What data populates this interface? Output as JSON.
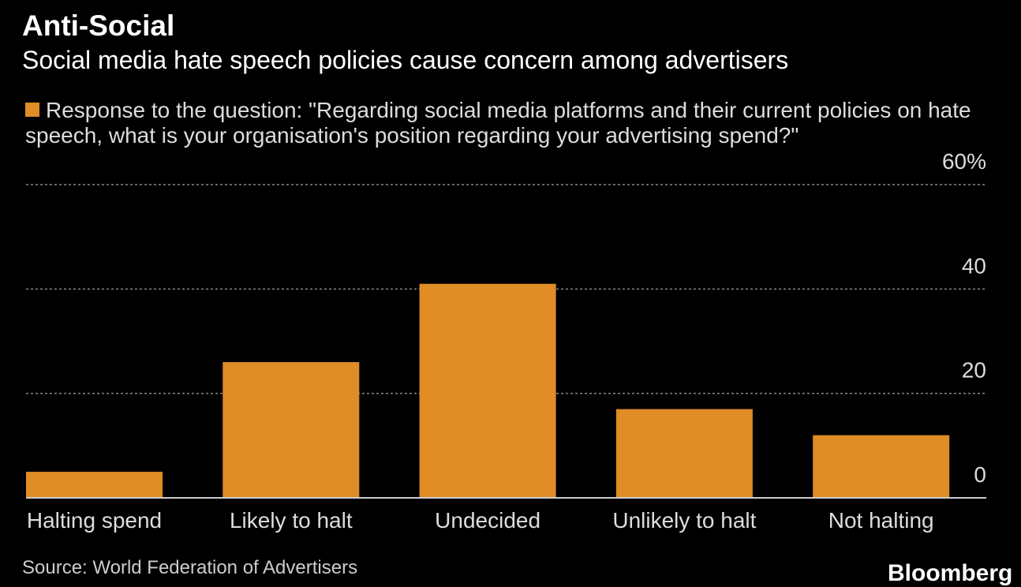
{
  "chart_data": {
    "type": "bar",
    "title": "Anti-Social",
    "subtitle": "Social media hate speech policies cause concern among advertisers",
    "categories": [
      "Halting spend",
      "Likely to halt",
      "Undecided",
      "Unlikely to halt",
      "Not halting"
    ],
    "series": [
      {
        "name": "Response to the question: \"Regarding social media platforms and their current policies on hate speech, what is your organisation's position regarding your advertising spend?\"",
        "color": "#e08c27",
        "values": [
          5,
          26,
          41,
          17,
          12
        ]
      }
    ],
    "ylim": [
      0,
      60
    ],
    "yticks": [
      0,
      20,
      40,
      {
        "value": 60,
        "label": "60%"
      }
    ],
    "grid": true,
    "source": "Source: World Federation of Advertisers",
    "logo": "Bloomberg"
  }
}
